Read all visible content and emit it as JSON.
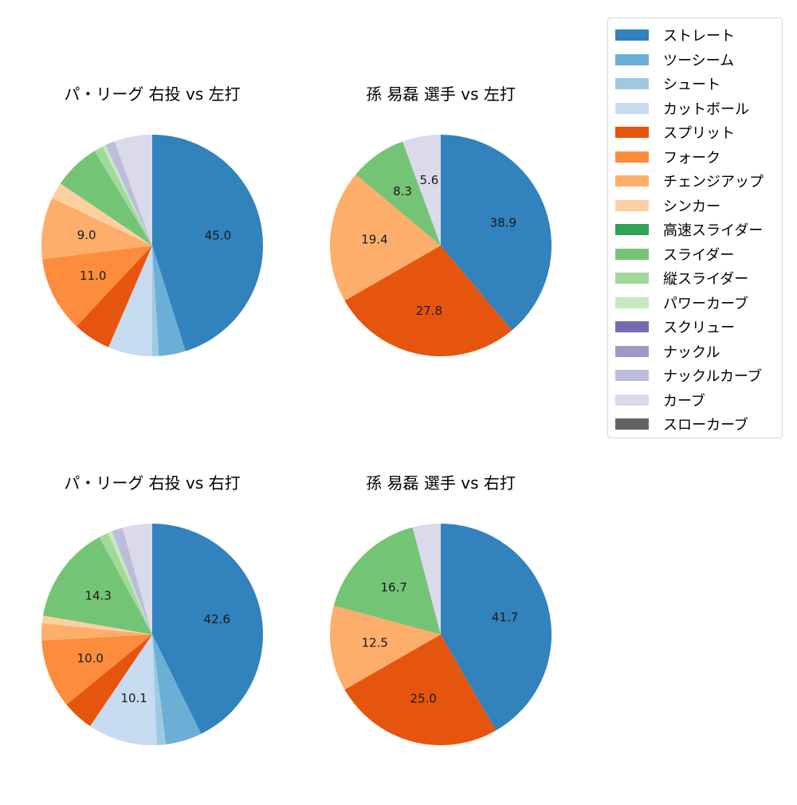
{
  "legend": {
    "items": [
      {
        "label": "ストレート",
        "color": "#3182bd"
      },
      {
        "label": "ツーシーム",
        "color": "#6baed6"
      },
      {
        "label": "シュート",
        "color": "#9ecae1"
      },
      {
        "label": "カットボール",
        "color": "#c6dbef"
      },
      {
        "label": "スプリット",
        "color": "#e6550d"
      },
      {
        "label": "フォーク",
        "color": "#fd8d3c"
      },
      {
        "label": "チェンジアップ",
        "color": "#fdae6b"
      },
      {
        "label": "シンカー",
        "color": "#fdd0a2"
      },
      {
        "label": "高速スライダー",
        "color": "#31a354"
      },
      {
        "label": "スライダー",
        "color": "#74c476"
      },
      {
        "label": "縦スライダー",
        "color": "#a1d99b"
      },
      {
        "label": "パワーカーブ",
        "color": "#c7e9c0"
      },
      {
        "label": "スクリュー",
        "color": "#756bb1"
      },
      {
        "label": "ナックル",
        "color": "#9e9ac8"
      },
      {
        "label": "ナックルカーブ",
        "color": "#bcbddc"
      },
      {
        "label": "カーブ",
        "color": "#dadaeb"
      },
      {
        "label": "スローカーブ",
        "color": "#636363"
      }
    ]
  },
  "chart_data": [
    {
      "type": "pie",
      "title": "パ・リーグ 右投 vs 左打",
      "start_angle": 90,
      "direction": "clockwise",
      "categories": [
        "ストレート",
        "ツーシーム",
        "シュート",
        "カットボール",
        "スプリット",
        "フォーク",
        "チェンジアップ",
        "シンカー",
        "高速スライダー",
        "スライダー",
        "縦スライダー",
        "パワーカーブ",
        "スクリュー",
        "ナックル",
        "ナックルカーブ",
        "カーブ",
        "スローカーブ"
      ],
      "values": [
        45.0,
        3.9,
        1.0,
        6.4,
        5.5,
        11.0,
        9.0,
        2.4,
        0,
        6.8,
        1.3,
        0.5,
        0,
        0,
        1.4,
        5.5,
        0
      ],
      "labels_shown": [
        "45.0",
        "11.0",
        "9.0"
      ]
    },
    {
      "type": "pie",
      "title": "孫 易磊 選手 vs 左打",
      "start_angle": 90,
      "direction": "clockwise",
      "categories": [
        "ストレート",
        "スプリット",
        "チェンジアップ",
        "スライダー",
        "カーブ"
      ],
      "values": [
        38.9,
        27.8,
        19.4,
        8.3,
        5.6
      ],
      "labels_shown": [
        "38.9",
        "27.8",
        "19.4",
        "8.3",
        "5.6"
      ]
    },
    {
      "type": "pie",
      "title": "パ・リーグ 右投 vs 右打",
      "start_angle": 90,
      "direction": "clockwise",
      "categories": [
        "ストレート",
        "ツーシーム",
        "シュート",
        "カットボール",
        "スプリット",
        "フォーク",
        "チェンジアップ",
        "シンカー",
        "高速スライダー",
        "スライダー",
        "縦スライダー",
        "パワーカーブ",
        "スクリュー",
        "ナックル",
        "ナックルカーブ",
        "カーブ",
        "スローカーブ"
      ],
      "values": [
        42.6,
        5.3,
        1.3,
        10.1,
        4.6,
        10.0,
        2.5,
        1.1,
        0,
        14.3,
        1.4,
        0.6,
        0,
        0,
        1.6,
        4.3,
        0
      ],
      "labels_shown": [
        "42.6",
        "10.1",
        "10.0",
        "14.3"
      ]
    },
    {
      "type": "pie",
      "title": "孫 易磊 選手 vs 右打",
      "start_angle": 90,
      "direction": "clockwise",
      "categories": [
        "ストレート",
        "スプリット",
        "チェンジアップ",
        "スライダー",
        "カーブ"
      ],
      "values": [
        41.7,
        25.0,
        12.5,
        16.7,
        4.1
      ],
      "labels_shown": [
        "41.7",
        "25.0",
        "12.5",
        "16.7"
      ]
    }
  ]
}
